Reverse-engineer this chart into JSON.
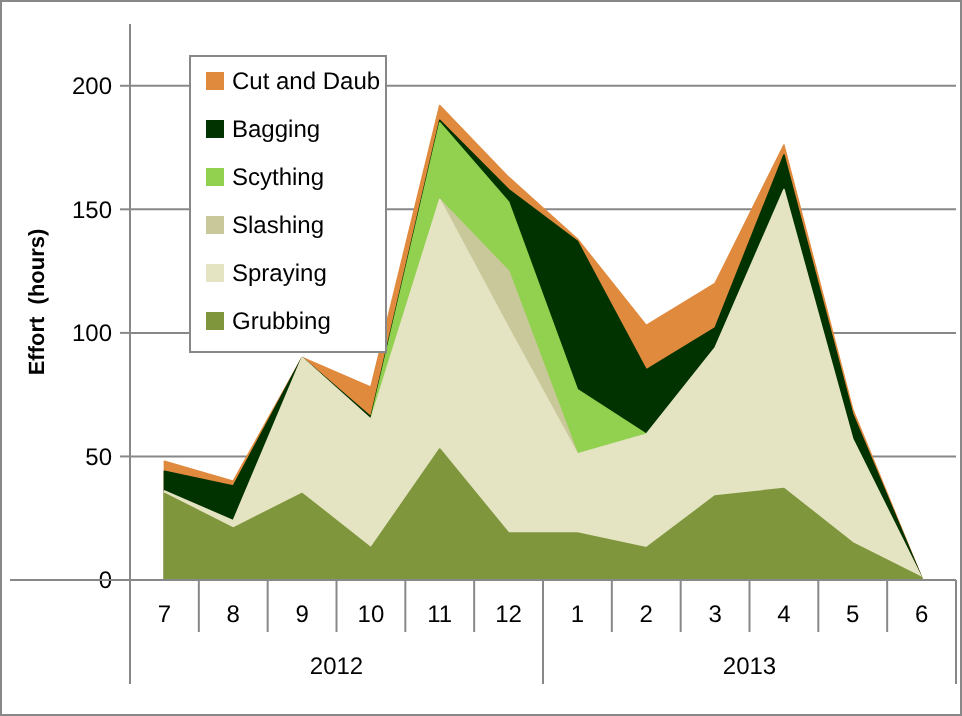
{
  "chart_data": {
    "type": "area",
    "stacked": true,
    "ylabel": "Effort  (hours)",
    "categories": [
      "7",
      "8",
      "9",
      "10",
      "11",
      "12",
      "1",
      "2",
      "3",
      "4",
      "5",
      "6"
    ],
    "annotations": [
      "2012",
      "2013"
    ],
    "ylim": [
      0,
      225
    ],
    "yticks": [
      0,
      50,
      100,
      150,
      200
    ],
    "grid": "y",
    "legend": "top left",
    "series": [
      {
        "name": "Grubbing",
        "color": "#7f963d",
        "values": [
          35,
          21,
          35,
          13,
          53,
          19,
          19,
          13,
          34,
          37,
          15,
          1
        ]
      },
      {
        "name": "Spraying",
        "color": "#e4e3c2",
        "values": [
          1,
          3,
          55,
          52,
          101,
          83,
          32,
          46,
          60,
          121,
          42,
          0
        ]
      },
      {
        "name": "Slashing",
        "color": "#c9c89a",
        "values": [
          null,
          null,
          null,
          null,
          0,
          23,
          0,
          null,
          null,
          null,
          null,
          null
        ]
      },
      {
        "name": "Scything",
        "color": "#92d050",
        "values": [
          null,
          null,
          null,
          0,
          31,
          28,
          26,
          0,
          null,
          null,
          null,
          null
        ]
      },
      {
        "name": "Bagging",
        "color": "#003300",
        "values": [
          8,
          14,
          0,
          1,
          1,
          5,
          60,
          26,
          8,
          14,
          10,
          0
        ]
      },
      {
        "name": "Cut and Daub",
        "color": "#e08a3e",
        "values": [
          4,
          2,
          0,
          12,
          6,
          5,
          1,
          18,
          18,
          4,
          2,
          0
        ]
      }
    ]
  }
}
